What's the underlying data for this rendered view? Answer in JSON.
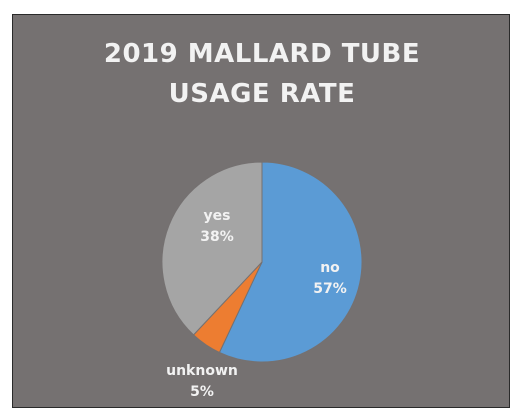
{
  "chart_data": {
    "type": "pie",
    "title": "2019 MALLARD TUBE USAGE RATE",
    "title_lines": [
      "2019 MALLARD TUBE",
      "USAGE RATE"
    ],
    "categories": [
      "no",
      "unknown",
      "yes"
    ],
    "values": [
      57,
      5,
      38
    ],
    "value_labels": [
      "57%",
      "5%",
      "38%"
    ],
    "colors": [
      "#5B9BD5",
      "#ED7D31",
      "#A5A5A5"
    ],
    "start_angle_deg": 0,
    "direction": "clockwise",
    "legend": "none",
    "background": "#757171"
  }
}
